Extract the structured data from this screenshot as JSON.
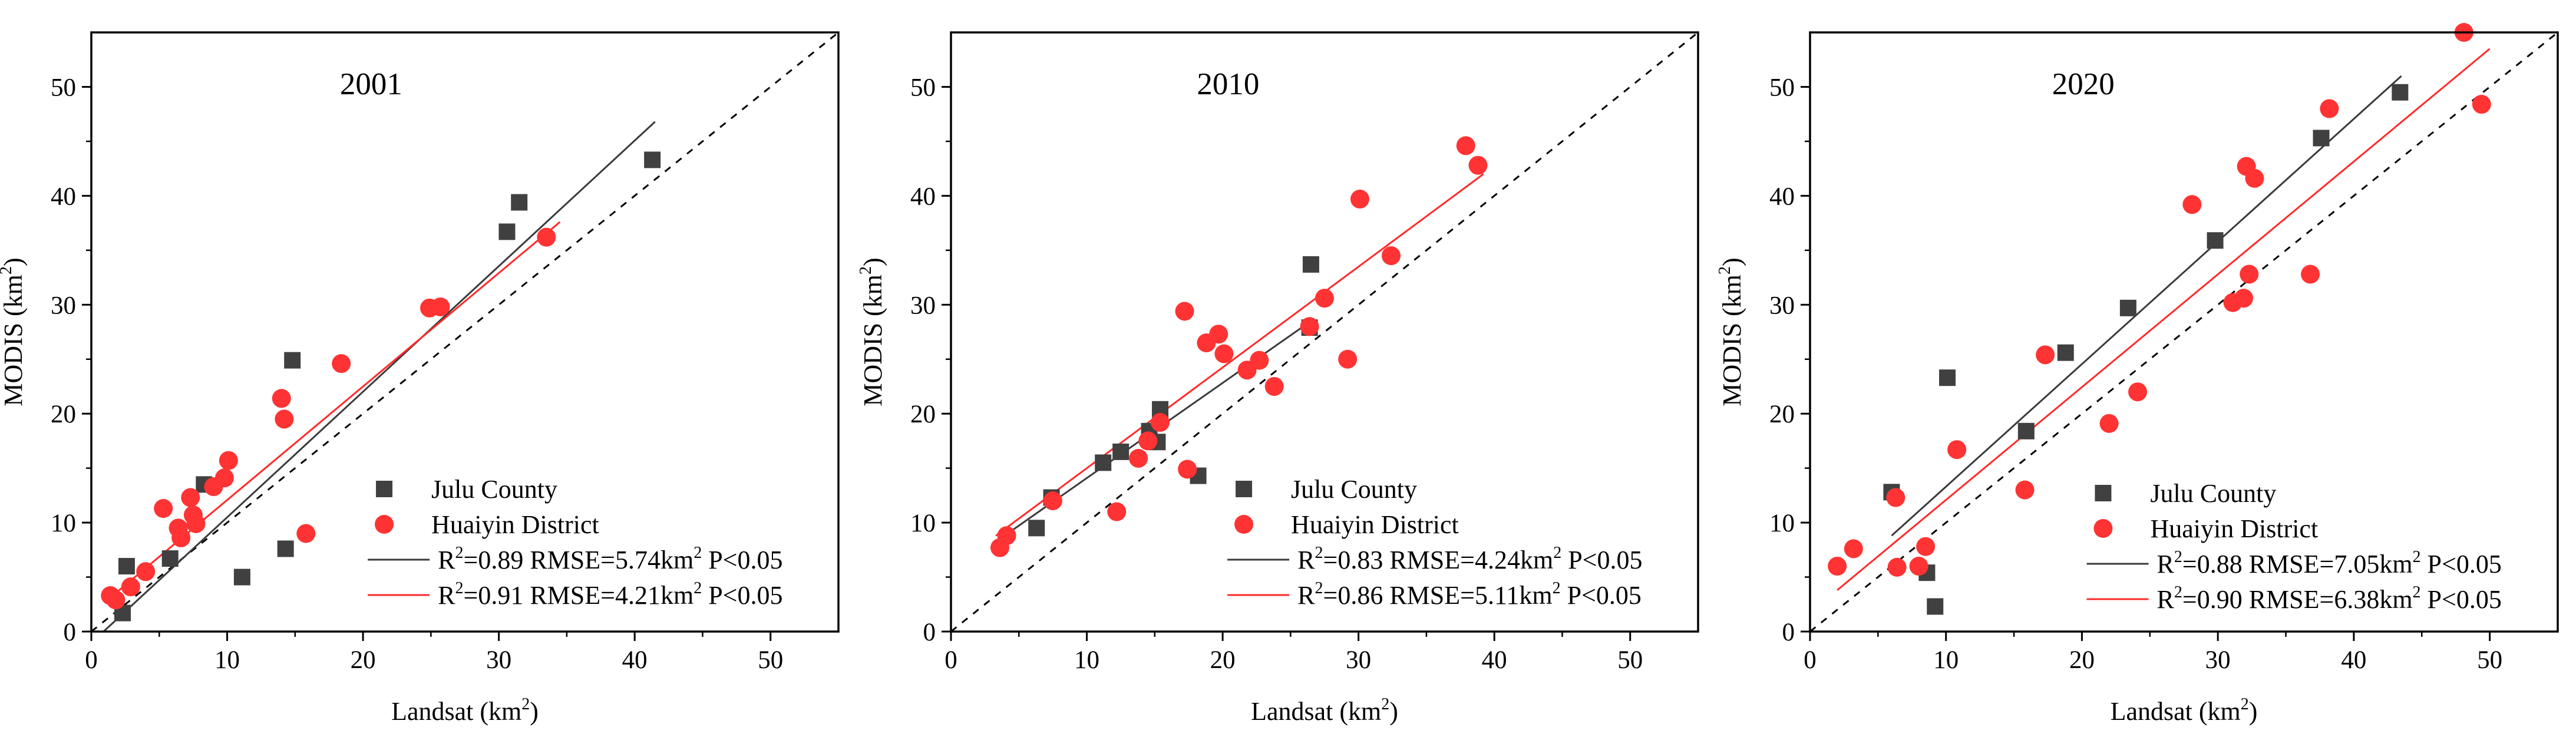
{
  "figure": {
    "x_label": "Landsat (km²)",
    "y_label": "MODIS (km²)",
    "x_label_main": "Landsat (km",
    "y_label_main": "MODIS (km",
    "label_close": ")",
    "sup_two": "2",
    "r2_prefix": "R",
    "colors": {
      "julu": "#404040",
      "huaiyin": "#ff3333",
      "julu_line": "#3a3a3a",
      "huaiyin_line": "#ff2a2a"
    }
  },
  "chart_data": [
    {
      "type": "scatter",
      "title": "2001",
      "xlabel": "Landsat (km²)",
      "ylabel": "MODIS (km²)",
      "xlim": [
        0,
        55
      ],
      "ylim": [
        0,
        55
      ],
      "xticks": [
        0,
        10,
        20,
        30,
        40,
        50
      ],
      "yticks": [
        0,
        10,
        20,
        30,
        40,
        50
      ],
      "reference_line": "1:1 dashed",
      "legend": {
        "position": "bottom-right",
        "julu": "Julu County",
        "huaiyin": "Huaiyin District"
      },
      "series": [
        {
          "name": "Julu County",
          "marker": "square",
          "color": "#404040",
          "points": [
            [
              2.3,
              1.7
            ],
            [
              2.6,
              6.0
            ],
            [
              5.8,
              6.7
            ],
            [
              8.3,
              13.5
            ],
            [
              11.1,
              5.0
            ],
            [
              14.3,
              7.6
            ],
            [
              14.8,
              24.9
            ],
            [
              30.6,
              36.7
            ],
            [
              31.5,
              39.4
            ],
            [
              41.3,
              43.3
            ]
          ],
          "fit": {
            "x": [
              0.9,
              41.5
            ],
            "y": [
              0.0,
              46.8
            ],
            "stats": "=0.89 RMSE=5.74km",
            "p_text": "P<0.05",
            "full_text": "R²=0.89 RMSE=5.74km² P<0.05"
          }
        },
        {
          "name": "Huaiyin District",
          "marker": "circle",
          "color": "#ff3333",
          "points": [
            [
              1.4,
              3.3
            ],
            [
              1.8,
              2.9
            ],
            [
              2.9,
              4.1
            ],
            [
              4.0,
              5.5
            ],
            [
              5.3,
              11.3
            ],
            [
              6.4,
              9.5
            ],
            [
              6.6,
              8.6
            ],
            [
              7.3,
              12.3
            ],
            [
              7.5,
              10.7
            ],
            [
              7.7,
              9.9
            ],
            [
              9.0,
              13.3
            ],
            [
              9.8,
              14.1
            ],
            [
              10.1,
              15.7
            ],
            [
              14.0,
              21.4
            ],
            [
              14.2,
              19.5
            ],
            [
              15.8,
              9.0
            ],
            [
              18.4,
              24.6
            ],
            [
              24.9,
              29.7
            ],
            [
              25.7,
              29.8
            ],
            [
              33.5,
              36.2
            ]
          ],
          "fit": {
            "x": [
              1.0,
              34.5
            ],
            "y": [
              2.7,
              37.6
            ],
            "stats": "=0.91 RMSE=4.21km",
            "p_text": "P<0.05",
            "full_text": "R²=0.91 RMSE=4.21km² P<0.05"
          }
        }
      ]
    },
    {
      "type": "scatter",
      "title": "2010",
      "xlabel": "Landsat (km²)",
      "ylabel": "MODIS (km²)",
      "xlim": [
        0,
        55
      ],
      "ylim": [
        0,
        55
      ],
      "xticks": [
        0,
        10,
        20,
        30,
        40,
        50
      ],
      "yticks": [
        0,
        10,
        20,
        30,
        40,
        50
      ],
      "reference_line": "1:1 dashed",
      "legend": {
        "position": "bottom-right",
        "julu": "Julu County",
        "huaiyin": "Huaiyin District"
      },
      "series": [
        {
          "name": "Julu County",
          "marker": "square",
          "color": "#404040",
          "points": [
            [
              6.3,
              9.5
            ],
            [
              7.4,
              12.3
            ],
            [
              11.2,
              15.5
            ],
            [
              12.5,
              16.5
            ],
            [
              14.6,
              18.4
            ],
            [
              15.2,
              17.4
            ],
            [
              15.4,
              20.4
            ],
            [
              18.2,
              14.3
            ],
            [
              26.4,
              27.9
            ],
            [
              26.5,
              33.7
            ]
          ],
          "fit": {
            "x": [
              3.6,
              26.5
            ],
            "y": [
              8.5,
              28.5
            ],
            "stats": "=0.83 RMSE=4.24km",
            "p_text": "P<0.05",
            "full_text": "R²=0.83 RMSE=4.24km² P<0.05"
          }
        },
        {
          "name": "Huaiyin District",
          "marker": "circle",
          "color": "#ff3333",
          "points": [
            [
              3.6,
              7.7
            ],
            [
              4.1,
              8.8
            ],
            [
              7.5,
              12.0
            ],
            [
              12.2,
              11.0
            ],
            [
              13.8,
              15.9
            ],
            [
              14.5,
              17.5
            ],
            [
              15.4,
              19.2
            ],
            [
              17.2,
              29.4
            ],
            [
              17.4,
              14.9
            ],
            [
              18.8,
              26.5
            ],
            [
              19.7,
              27.3
            ],
            [
              20.1,
              25.5
            ],
            [
              21.8,
              24.0
            ],
            [
              22.7,
              24.9
            ],
            [
              23.8,
              22.5
            ],
            [
              26.4,
              28.0
            ],
            [
              27.5,
              30.6
            ],
            [
              29.2,
              25.0
            ],
            [
              30.1,
              39.7
            ],
            [
              32.4,
              34.5
            ],
            [
              37.9,
              44.6
            ],
            [
              38.8,
              42.8
            ]
          ],
          "fit": {
            "x": [
              3.3,
              39.2
            ],
            "y": [
              8.8,
              42.0
            ],
            "stats": "=0.86 RMSE=5.11km",
            "p_text": "P<0.05",
            "full_text": "R²=0.86 RMSE=5.11km² P<0.05"
          }
        }
      ]
    },
    {
      "type": "scatter",
      "title": "2020",
      "xlabel": "Landsat (km²)",
      "ylabel": "MODIS (km²)",
      "xlim": [
        0,
        55
      ],
      "ylim": [
        0,
        55
      ],
      "xticks": [
        0,
        10,
        20,
        30,
        40,
        50
      ],
      "yticks": [
        0,
        10,
        20,
        30,
        40,
        50
      ],
      "reference_line": "1:1 dashed",
      "legend": {
        "position": "bottom-right",
        "julu": "Julu County",
        "huaiyin": "Huaiyin District"
      },
      "series": [
        {
          "name": "Julu County",
          "marker": "square",
          "color": "#404040",
          "points": [
            [
              6.0,
              12.8
            ],
            [
              8.6,
              5.4
            ],
            [
              9.2,
              2.3
            ],
            [
              10.1,
              23.3
            ],
            [
              15.9,
              18.4
            ],
            [
              18.8,
              25.6
            ],
            [
              23.4,
              29.7
            ],
            [
              29.8,
              35.9
            ],
            [
              37.6,
              45.3
            ],
            [
              43.4,
              49.5
            ]
          ],
          "fit": {
            "x": [
              6.0,
              43.5
            ],
            "y": [
              8.8,
              51.0
            ],
            "stats": "=0.88 RMSE=7.05km",
            "p_text": "P<0.05",
            "full_text": "R²=0.88 RMSE=7.05km² P<0.05"
          }
        },
        {
          "name": "Huaiyin District",
          "marker": "circle",
          "color": "#ff3333",
          "points": [
            [
              2.0,
              6.0
            ],
            [
              3.2,
              7.6
            ],
            [
              6.3,
              12.3
            ],
            [
              6.4,
              5.9
            ],
            [
              8.0,
              6.0
            ],
            [
              8.5,
              7.8
            ],
            [
              10.8,
              16.7
            ],
            [
              15.8,
              13.0
            ],
            [
              17.3,
              25.4
            ],
            [
              22.0,
              19.1
            ],
            [
              24.1,
              22.0
            ],
            [
              28.1,
              39.2
            ],
            [
              31.1,
              30.2
            ],
            [
              31.9,
              30.6
            ],
            [
              32.1,
              42.7
            ],
            [
              32.3,
              32.8
            ],
            [
              32.7,
              41.6
            ],
            [
              36.8,
              32.8
            ],
            [
              38.2,
              48.0
            ],
            [
              48.1,
              55.0
            ],
            [
              49.4,
              48.4
            ]
          ],
          "fit": {
            "x": [
              2.0,
              50.0
            ],
            "y": [
              3.8,
              53.5
            ],
            "stats": "=0.90 RMSE=6.38km",
            "p_text": "P<0.05",
            "full_text": "R²=0.90 RMSE=6.38km² P<0.05"
          }
        }
      ]
    }
  ]
}
